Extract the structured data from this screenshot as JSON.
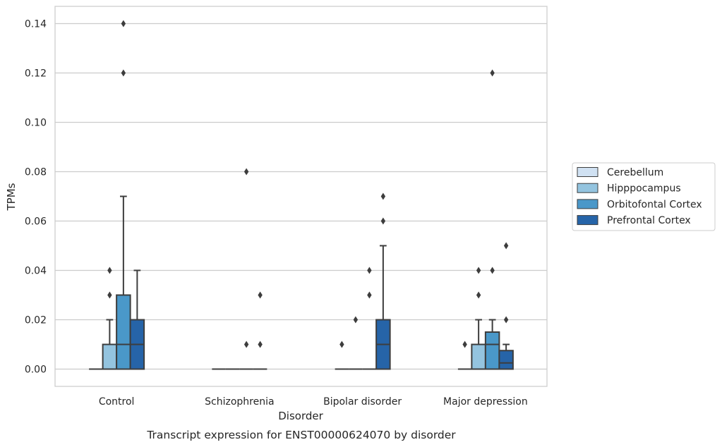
{
  "caption": "Transcript expression for ENST00000624070 by disorder",
  "chart_data": {
    "type": "box",
    "xlabel": "Disorder",
    "ylabel": "TPMs",
    "ylim": [
      -0.007,
      0.147
    ],
    "yticks": [
      "0.00",
      "0.02",
      "0.04",
      "0.06",
      "0.08",
      "0.10",
      "0.12",
      "0.14"
    ],
    "ytick_values": [
      0,
      0.02,
      0.04,
      0.06,
      0.08,
      0.1,
      0.12,
      0.14
    ],
    "grid": "horizontal",
    "legend_position": "right",
    "categories": [
      "Control",
      "Schizophrenia",
      "Bipolar disorder",
      "Major depression"
    ],
    "series": [
      {
        "name": "Cerebellum",
        "color": "#d0e1f2",
        "boxes": [
          {
            "q1": 0,
            "median": 0,
            "q3": 0,
            "whisker_low": 0,
            "whisker_high": 0,
            "outliers": []
          },
          {
            "q1": 0,
            "median": 0,
            "q3": 0,
            "whisker_low": 0,
            "whisker_high": 0,
            "outliers": []
          },
          {
            "q1": 0,
            "median": 0,
            "q3": 0,
            "whisker_low": 0,
            "whisker_high": 0,
            "outliers": [
              0.01
            ]
          },
          {
            "q1": 0,
            "median": 0,
            "q3": 0,
            "whisker_low": 0,
            "whisker_high": 0,
            "outliers": [
              0.01
            ]
          }
        ]
      },
      {
        "name": "Hipppocampus",
        "color": "#94c4df",
        "boxes": [
          {
            "q1": 0,
            "median": 0.01,
            "q3": 0.01,
            "whisker_low": 0,
            "whisker_high": 0.02,
            "outliers": [
              0.03,
              0.04
            ]
          },
          {
            "q1": 0,
            "median": 0,
            "q3": 0,
            "whisker_low": 0,
            "whisker_high": 0,
            "outliers": []
          },
          {
            "q1": 0,
            "median": 0,
            "q3": 0,
            "whisker_low": 0,
            "whisker_high": 0,
            "outliers": [
              0.02
            ]
          },
          {
            "q1": 0,
            "median": 0.01,
            "q3": 0.01,
            "whisker_low": 0,
            "whisker_high": 0.02,
            "outliers": [
              0.03,
              0.04
            ]
          }
        ]
      },
      {
        "name": "Orbitofontal Cortex",
        "color": "#4a98c9",
        "boxes": [
          {
            "q1": 0,
            "median": 0.01,
            "q3": 0.03,
            "whisker_low": 0,
            "whisker_high": 0.07,
            "outliers": [
              0.12,
              0.14
            ]
          },
          {
            "q1": 0,
            "median": 0,
            "q3": 0,
            "whisker_low": 0,
            "whisker_high": 0,
            "outliers": [
              0.01,
              0.08
            ]
          },
          {
            "q1": 0,
            "median": 0,
            "q3": 0,
            "whisker_low": 0,
            "whisker_high": 0,
            "outliers": [
              0.03,
              0.04
            ]
          },
          {
            "q1": 0,
            "median": 0.01,
            "q3": 0.015,
            "whisker_low": 0,
            "whisker_high": 0.02,
            "outliers": [
              0.04,
              0.12
            ]
          }
        ]
      },
      {
        "name": "Prefrontal Cortex",
        "color": "#2664a8",
        "boxes": [
          {
            "q1": 0,
            "median": 0.01,
            "q3": 0.02,
            "whisker_low": 0,
            "whisker_high": 0.04,
            "outliers": []
          },
          {
            "q1": 0,
            "median": 0,
            "q3": 0,
            "whisker_low": 0,
            "whisker_high": 0,
            "outliers": [
              0.01,
              0.03
            ]
          },
          {
            "q1": 0,
            "median": 0.01,
            "q3": 0.02,
            "whisker_low": 0,
            "whisker_high": 0.05,
            "outliers": [
              0.06,
              0.07
            ]
          },
          {
            "q1": 0,
            "median": 0.0025,
            "q3": 0.0075,
            "whisker_low": 0,
            "whisker_high": 0.01,
            "outliers": [
              0.02,
              0.05
            ]
          }
        ]
      }
    ]
  }
}
